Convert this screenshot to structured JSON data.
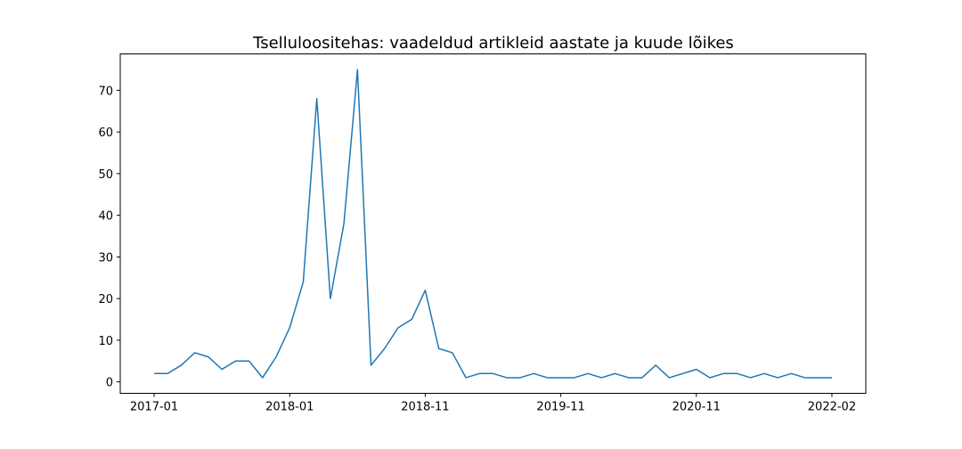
{
  "chart_data": {
    "type": "line",
    "title": "Tselluloositehas: vaadeldud artikleid aastate ja kuude lõikes",
    "xlabel": "",
    "ylabel": "",
    "color": "#1f77b4",
    "grid": false,
    "x_tick_labels": [
      "2017-01",
      "2018-01",
      "2018-11",
      "2019-11",
      "2020-11",
      "2022-02"
    ],
    "x_tick_positions": [
      0,
      10,
      20,
      30,
      40,
      50
    ],
    "y_ticks": [
      0,
      10,
      20,
      30,
      40,
      50,
      60,
      70
    ],
    "ylim": [
      -2.75,
      78.75
    ],
    "xlim": [
      -2.5,
      52.5
    ],
    "series": [
      {
        "values": [
          2,
          2,
          4,
          7,
          6,
          3,
          5,
          5,
          1,
          6,
          13,
          24,
          68,
          20,
          38,
          75,
          4,
          8,
          13,
          15,
          22,
          8,
          7,
          1,
          2,
          2,
          1,
          1,
          2,
          1,
          1,
          1,
          2,
          1,
          2,
          1,
          1,
          4,
          1,
          2,
          3,
          1,
          2,
          2,
          1,
          2,
          1,
          2,
          1,
          1,
          1
        ]
      }
    ]
  }
}
